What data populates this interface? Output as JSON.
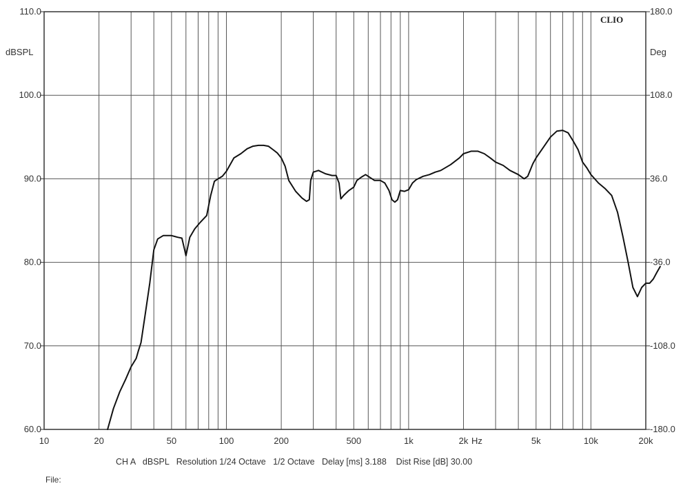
{
  "chart_data": {
    "type": "line",
    "brand_label": "CLIO",
    "y_unit_left": "dBSPL",
    "y_unit_right": "Deg",
    "x_unit": "Hz",
    "x_scale": "log",
    "xlim": [
      10,
      20000
    ],
    "ylim": [
      60,
      110
    ],
    "ylim_right": [
      -180,
      180
    ],
    "grid": true,
    "y_ticks": [
      {
        "value": 110,
        "label": "110.0"
      },
      {
        "value": 100,
        "label": "100.0"
      },
      {
        "value": 90,
        "label": "90.0"
      },
      {
        "value": 80,
        "label": "80.0"
      },
      {
        "value": 70,
        "label": "70.0"
      },
      {
        "value": 60,
        "label": "60.0"
      }
    ],
    "y_ticks_right": [
      {
        "value": 180,
        "label": "180.0"
      },
      {
        "value": 108,
        "label": "108.0"
      },
      {
        "value": 36,
        "label": "36.0"
      },
      {
        "value": -36,
        "label": "-36.0"
      },
      {
        "value": -108,
        "label": "-108.0"
      },
      {
        "value": -180,
        "label": "-180.0"
      }
    ],
    "x_ticks": [
      {
        "value": 10,
        "label": "10"
      },
      {
        "value": 20,
        "label": "20"
      },
      {
        "value": 50,
        "label": "50"
      },
      {
        "value": 100,
        "label": "100"
      },
      {
        "value": 200,
        "label": "200"
      },
      {
        "value": 500,
        "label": "500"
      },
      {
        "value": 1000,
        "label": "1k"
      },
      {
        "value": 2000,
        "label": "2k"
      },
      {
        "value": 5000,
        "label": "5k"
      },
      {
        "value": 10000,
        "label": "10k"
      },
      {
        "value": 20000,
        "label": "20k"
      }
    ],
    "series": [
      {
        "points": [
          [
            22.3,
            60.0
          ],
          [
            24,
            62.5
          ],
          [
            26,
            64.5
          ],
          [
            28,
            66.0
          ],
          [
            30,
            67.5
          ],
          [
            32,
            68.5
          ],
          [
            33,
            69.5
          ],
          [
            34,
            70.4
          ],
          [
            36,
            74.0
          ],
          [
            38,
            77.5
          ],
          [
            40,
            81.5
          ],
          [
            42,
            82.8
          ],
          [
            45,
            83.2
          ],
          [
            50,
            83.2
          ],
          [
            54,
            83.0
          ],
          [
            57,
            82.9
          ],
          [
            59,
            81.5
          ],
          [
            60,
            80.8
          ],
          [
            63,
            83.0
          ],
          [
            67,
            84.0
          ],
          [
            72,
            84.8
          ],
          [
            78,
            85.6
          ],
          [
            82,
            88.0
          ],
          [
            86,
            89.7
          ],
          [
            90,
            90.0
          ],
          [
            95,
            90.3
          ],
          [
            100,
            90.9
          ],
          [
            110,
            92.5
          ],
          [
            120,
            93.0
          ],
          [
            130,
            93.6
          ],
          [
            140,
            93.9
          ],
          [
            150,
            94.0
          ],
          [
            160,
            94.0
          ],
          [
            170,
            93.9
          ],
          [
            180,
            93.5
          ],
          [
            190,
            93.1
          ],
          [
            200,
            92.5
          ],
          [
            210,
            91.5
          ],
          [
            220,
            89.8
          ],
          [
            240,
            88.5
          ],
          [
            260,
            87.7
          ],
          [
            275,
            87.3
          ],
          [
            285,
            87.5
          ],
          [
            290,
            89.8
          ],
          [
            300,
            90.8
          ],
          [
            320,
            91.0
          ],
          [
            350,
            90.6
          ],
          [
            380,
            90.4
          ],
          [
            400,
            90.4
          ],
          [
            415,
            89.5
          ],
          [
            425,
            87.6
          ],
          [
            440,
            88.0
          ],
          [
            470,
            88.6
          ],
          [
            500,
            89.0
          ],
          [
            520,
            89.8
          ],
          [
            550,
            90.2
          ],
          [
            580,
            90.5
          ],
          [
            600,
            90.3
          ],
          [
            650,
            89.8
          ],
          [
            700,
            89.8
          ],
          [
            740,
            89.5
          ],
          [
            780,
            88.6
          ],
          [
            810,
            87.5
          ],
          [
            840,
            87.2
          ],
          [
            870,
            87.5
          ],
          [
            900,
            88.6
          ],
          [
            950,
            88.5
          ],
          [
            1000,
            88.7
          ],
          [
            1050,
            89.5
          ],
          [
            1100,
            89.9
          ],
          [
            1200,
            90.3
          ],
          [
            1300,
            90.5
          ],
          [
            1400,
            90.8
          ],
          [
            1500,
            91.0
          ],
          [
            1700,
            91.7
          ],
          [
            1900,
            92.5
          ],
          [
            2000,
            93.0
          ],
          [
            2200,
            93.3
          ],
          [
            2400,
            93.3
          ],
          [
            2600,
            93.0
          ],
          [
            2800,
            92.5
          ],
          [
            3000,
            92.0
          ],
          [
            3300,
            91.6
          ],
          [
            3600,
            91.0
          ],
          [
            4000,
            90.5
          ],
          [
            4300,
            90.0
          ],
          [
            4500,
            90.3
          ],
          [
            4800,
            91.8
          ],
          [
            5000,
            92.5
          ],
          [
            5500,
            93.8
          ],
          [
            6000,
            95.0
          ],
          [
            6500,
            95.7
          ],
          [
            7000,
            95.8
          ],
          [
            7500,
            95.5
          ],
          [
            8000,
            94.5
          ],
          [
            8500,
            93.5
          ],
          [
            9000,
            92.0
          ],
          [
            9500,
            91.3
          ],
          [
            10000,
            90.5
          ],
          [
            11000,
            89.5
          ],
          [
            12000,
            88.8
          ],
          [
            13000,
            88.0
          ],
          [
            14000,
            86.0
          ],
          [
            15000,
            83.0
          ],
          [
            16000,
            80.0
          ],
          [
            17000,
            77.0
          ],
          [
            18000,
            75.9
          ],
          [
            19000,
            77.0
          ],
          [
            20000,
            77.5
          ],
          [
            21000,
            77.5
          ],
          [
            22000,
            78.0
          ],
          [
            23000,
            78.8
          ],
          [
            24000,
            79.5
          ]
        ]
      }
    ]
  },
  "footer": {
    "info_line": "CH A   dBSPL   Resolution 1/24 Octave   1/2 Octave   Delay [ms] 3.188    Dist Rise [dB] 30.00",
    "file_label": "File:"
  }
}
